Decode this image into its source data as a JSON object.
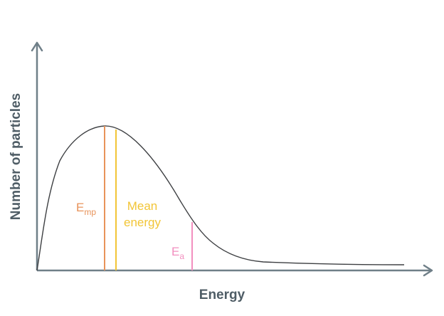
{
  "diagram": {
    "x_axis_label": "Energy",
    "y_axis_label": "Number of particles",
    "markers": {
      "most_probable": {
        "label_main": "E",
        "label_sub": "mp",
        "color": "#e8935a"
      },
      "mean_energy": {
        "label_line1": "Mean",
        "label_line2": "energy",
        "color": "#f2c536"
      },
      "activation": {
        "label_main": "E",
        "label_sub": "a",
        "color": "#f28fbf"
      }
    },
    "colors": {
      "axis": "#6f7f88",
      "curve": "#3d3f42",
      "axis_text": "#4f5d66"
    }
  }
}
